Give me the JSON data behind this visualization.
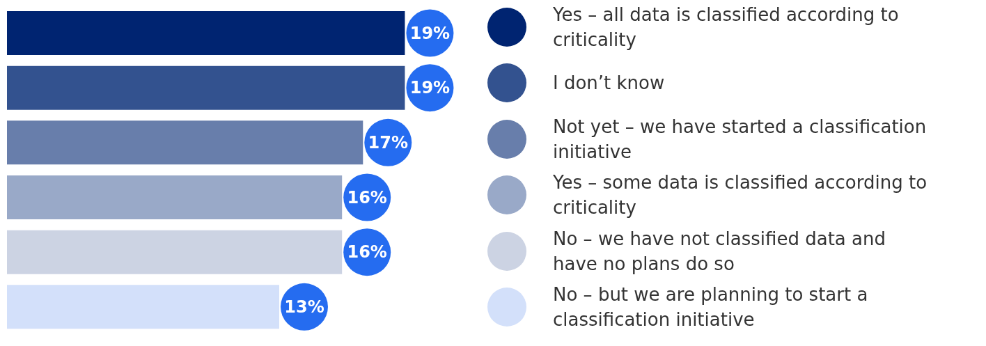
{
  "chart_data": {
    "type": "bar",
    "orientation": "horizontal",
    "stacked": true,
    "categories": [
      null,
      null,
      null,
      null,
      null,
      null
    ],
    "legend": "right",
    "series": [
      {
        "name": "Yes – all data is classified according to criticality",
        "color": "#002471",
        "values": [
          19,
          null,
          null,
          null,
          null,
          null
        ],
        "value_labels": [
          "19%",
          null,
          null,
          null,
          null,
          null
        ]
      },
      {
        "name": "I don’t know",
        "color": "#33528f",
        "values": [
          null,
          19,
          null,
          null,
          null,
          null
        ],
        "value_labels": [
          null,
          "19%",
          null,
          null,
          null,
          null
        ]
      },
      {
        "name": "Not yet – we have started a classification initiative",
        "color": "#687eab",
        "values": [
          null,
          null,
          17,
          null,
          null,
          null
        ],
        "value_labels": [
          null,
          null,
          "17%",
          null,
          null,
          null
        ]
      },
      {
        "name": "Yes – some data is classified according to criticality",
        "color": "#99a9c8",
        "values": [
          null,
          null,
          null,
          16,
          null,
          null
        ],
        "value_labels": [
          null,
          null,
          null,
          "16%",
          null,
          null
        ]
      },
      {
        "name": "No – we have not classified data and have no plans do so",
        "color": "#ccd3e3",
        "values": [
          null,
          null,
          null,
          null,
          16,
          null
        ],
        "value_labels": [
          null,
          null,
          null,
          null,
          "16%",
          null
        ]
      },
      {
        "name": "No – but we are planning to start a classification initiative",
        "color": "#d3e0fa",
        "values": [
          null,
          null,
          null,
          null,
          null,
          13
        ],
        "value_labels": [
          null,
          null,
          null,
          null,
          null,
          "13%"
        ]
      }
    ]
  }
}
